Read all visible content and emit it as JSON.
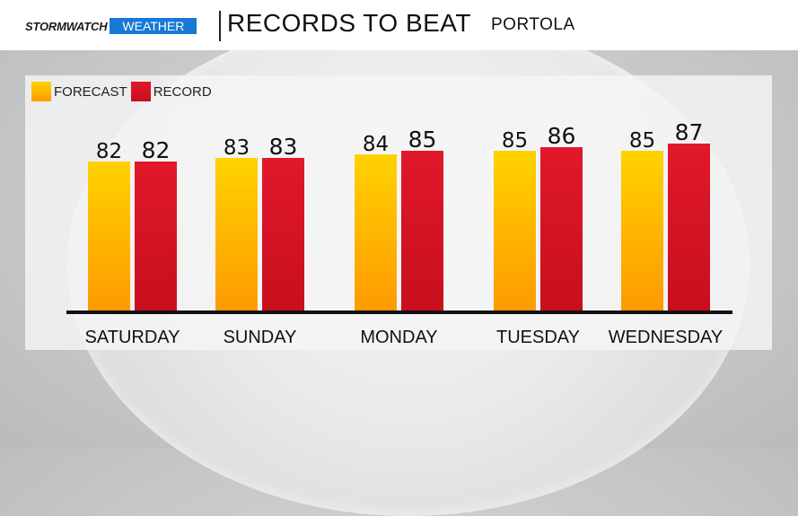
{
  "header": {
    "brand_storm": "STORMWATCH",
    "brand_weather": "WEATHER",
    "title": "RECORDS TO BEAT",
    "location": "PORTOLA"
  },
  "colors": {
    "forecast_top": "#ffd200",
    "forecast_bottom": "#ff9a00",
    "record_top": "#e0182a",
    "record_bottom": "#c80f1e"
  },
  "chart_data": {
    "type": "bar",
    "title": "RECORDS TO BEAT",
    "xlabel": "",
    "ylabel": "",
    "legend_position": "top-left",
    "grid": false,
    "categories": [
      "SATURDAY",
      "SUNDAY",
      "MONDAY",
      "TUESDAY",
      "WEDNESDAY"
    ],
    "series": [
      {
        "name": "FORECAST",
        "values": [
          82,
          83,
          84,
          85,
          85
        ]
      },
      {
        "name": "RECORD",
        "values": [
          82,
          83,
          85,
          86,
          87
        ]
      }
    ]
  }
}
